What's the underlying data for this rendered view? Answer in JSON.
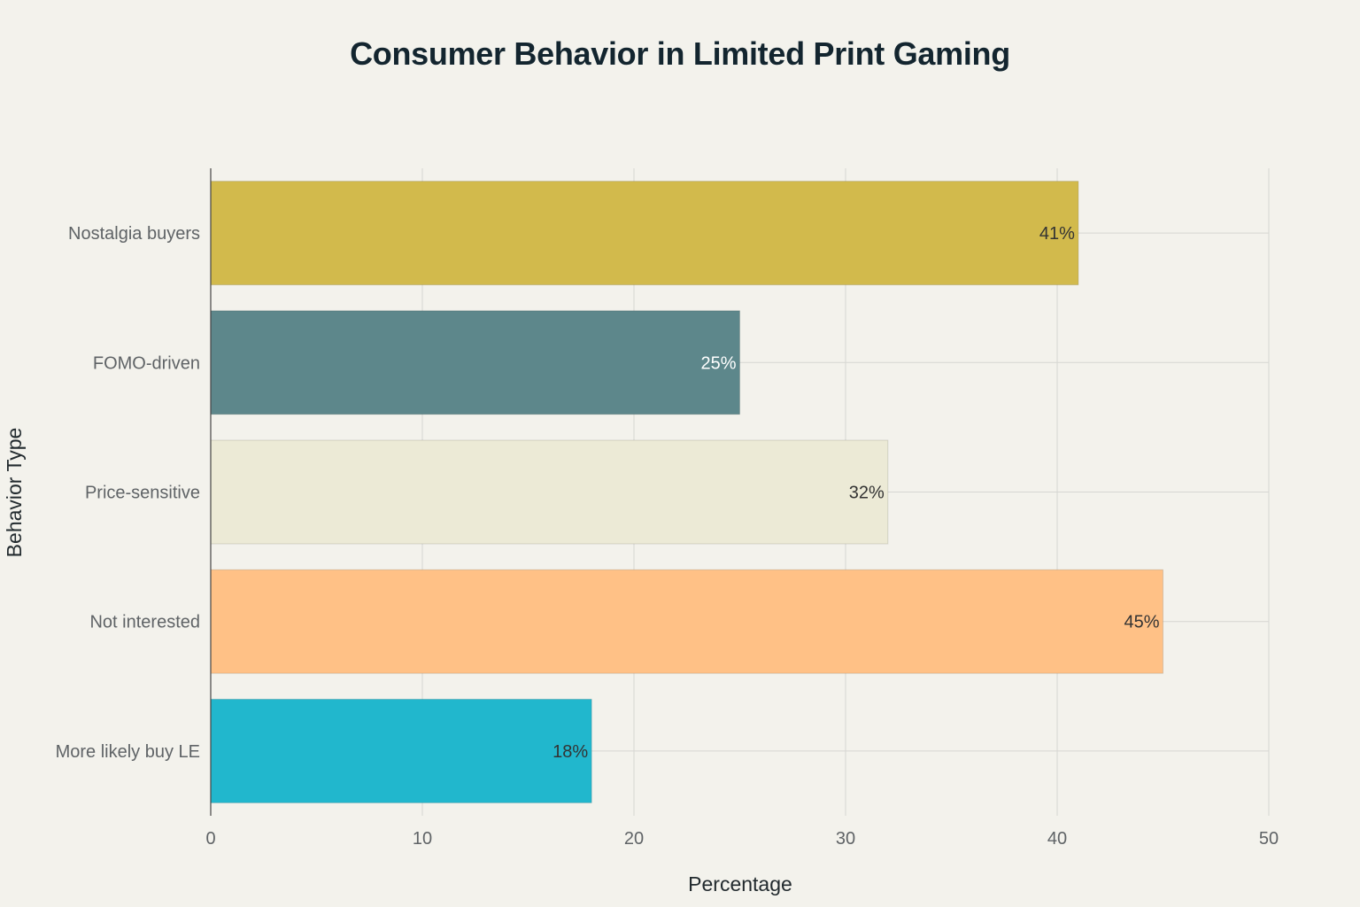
{
  "chart_data": {
    "type": "bar",
    "orientation": "horizontal",
    "title": "Consumer Behavior in Limited Print Gaming",
    "xlabel": "Percentage",
    "ylabel": "Behavior Type",
    "xlim": [
      0,
      50
    ],
    "x_ticks": [
      0,
      10,
      20,
      30,
      40,
      50
    ],
    "grid": true,
    "categories": [
      "Nostalgia buyers",
      "FOMO-driven",
      "Price-sensitive",
      "Not interested",
      "More likely buy LE"
    ],
    "values": [
      41,
      25,
      32,
      45,
      18
    ],
    "data_labels": [
      "41%",
      "25%",
      "32%",
      "45%",
      "18%"
    ],
    "bar_colors": [
      "#d2ba4c",
      "#5d878b",
      "#ecead6",
      "#ffc186",
      "#21b7cd"
    ],
    "label_colors": [
      "#333333",
      "#ffffff",
      "#333333",
      "#333333",
      "#333333"
    ]
  }
}
